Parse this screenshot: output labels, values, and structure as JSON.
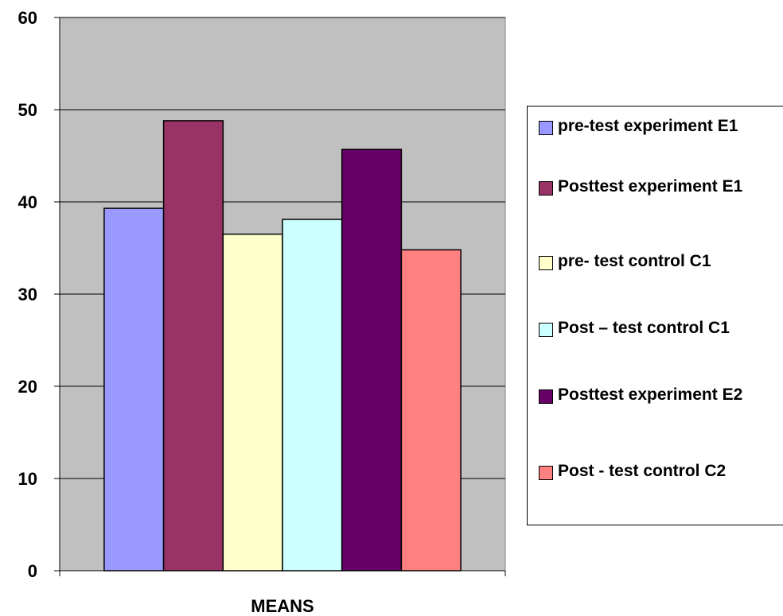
{
  "chart_data": {
    "type": "bar",
    "title": "",
    "xlabel": "MEANS",
    "ylabel": "",
    "categories": [
      "MEANS"
    ],
    "series": [
      {
        "name": "pre-test experiment E1",
        "values": [
          39.3
        ],
        "color": "#9999FF"
      },
      {
        "name": "Posttest experiment E1",
        "values": [
          48.8
        ],
        "color": "#993366"
      },
      {
        "name": "pre- test control  C1",
        "values": [
          36.5
        ],
        "color": "#FFFFCC"
      },
      {
        "name": "Post – test control C1",
        "values": [
          38.1
        ],
        "color": "#CCFFFF"
      },
      {
        "name": "Posttest experiment E2",
        "values": [
          45.7
        ],
        "color": "#660066"
      },
      {
        "name": "Post - test control C2",
        "values": [
          34.8
        ],
        "color": "#FF8080"
      }
    ],
    "ylim": [
      0,
      60
    ],
    "yticks": [
      "0",
      "10",
      "20",
      "30",
      "40",
      "50",
      "60"
    ],
    "grid": true,
    "plot_background": "#C0C0C0",
    "legend_position": "right"
  }
}
